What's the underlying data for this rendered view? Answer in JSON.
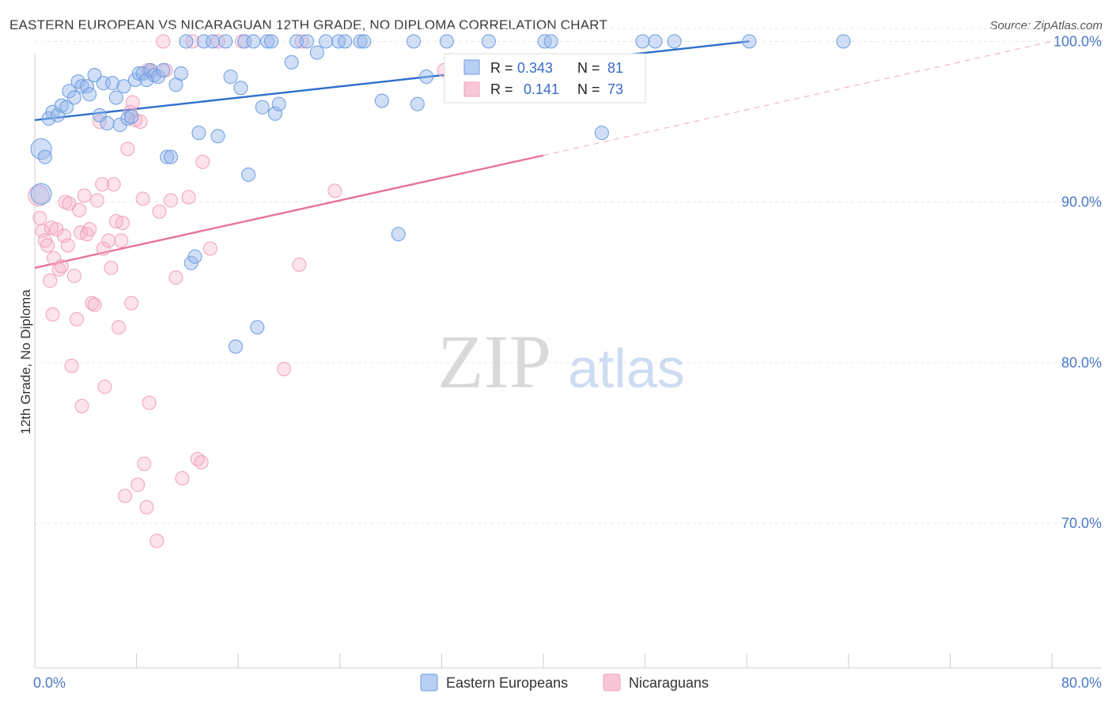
{
  "title": "EASTERN EUROPEAN VS NICARAGUAN 12TH GRADE, NO DIPLOMA CORRELATION CHART",
  "source": "Source: ZipAtlas.com",
  "watermark": {
    "zip": "ZIP",
    "atlas": "atlas"
  },
  "chart_data": {
    "type": "scatter",
    "title": "EASTERN EUROPEAN VS NICARAGUAN 12TH GRADE, NO DIPLOMA CORRELATION CHART",
    "xlabel": "",
    "ylabel": "12th Grade, No Diploma",
    "xlim": [
      0,
      80
    ],
    "ylim": [
      61,
      101
    ],
    "x_tick_labels": [
      "0.0%",
      "80.0%"
    ],
    "y_ticks": [
      70,
      80,
      90,
      100
    ],
    "y_tick_labels": [
      "70.0%",
      "80.0%",
      "90.0%",
      "100.0%"
    ],
    "legend": [
      "Eastern Europeans",
      "Nicaraguans"
    ],
    "series": [
      {
        "name": "Eastern Europeans",
        "color": "#6c9be0",
        "stats": {
          "r_label": "R =",
          "r_value": "0.343",
          "n_label": "N =",
          "n_value": "81"
        },
        "trend": {
          "x": [
            0,
            56.2
          ],
          "y": [
            95.1,
            100.0
          ]
        },
        "points": [
          [
            0.5,
            90.5
          ],
          [
            0.5,
            93.3
          ],
          [
            0.8,
            92.8
          ],
          [
            1.1,
            95.2
          ],
          [
            1.4,
            95.6
          ],
          [
            1.8,
            95.4
          ],
          [
            2.1,
            96.0
          ],
          [
            2.5,
            95.9
          ],
          [
            2.7,
            96.9
          ],
          [
            3.1,
            96.5
          ],
          [
            3.4,
            97.5
          ],
          [
            3.7,
            97.2
          ],
          [
            4.1,
            97.2
          ],
          [
            4.3,
            96.7
          ],
          [
            4.7,
            97.9
          ],
          [
            5.1,
            95.4
          ],
          [
            5.4,
            97.4
          ],
          [
            5.7,
            94.9
          ],
          [
            6.1,
            97.4
          ],
          [
            6.4,
            96.5
          ],
          [
            6.7,
            94.8
          ],
          [
            7.0,
            97.2
          ],
          [
            7.3,
            95.2
          ],
          [
            7.6,
            95.3
          ],
          [
            7.9,
            97.6
          ],
          [
            8.2,
            98.0
          ],
          [
            8.5,
            98.0
          ],
          [
            8.8,
            97.6
          ],
          [
            9.1,
            98.2
          ],
          [
            9.4,
            97.9
          ],
          [
            9.7,
            97.8
          ],
          [
            10.1,
            98.2
          ],
          [
            10.4,
            92.8
          ],
          [
            10.7,
            92.8
          ],
          [
            11.1,
            97.3
          ],
          [
            11.5,
            98.0
          ],
          [
            11.9,
            100.0
          ],
          [
            12.3,
            86.2
          ],
          [
            12.6,
            86.6
          ],
          [
            12.9,
            94.3
          ],
          [
            13.3,
            100.0
          ],
          [
            14.0,
            100.0
          ],
          [
            14.4,
            94.1
          ],
          [
            15.0,
            100.0
          ],
          [
            15.4,
            97.8
          ],
          [
            15.8,
            81.0
          ],
          [
            16.2,
            97.1
          ],
          [
            16.5,
            100.0
          ],
          [
            16.8,
            91.7
          ],
          [
            17.2,
            100.0
          ],
          [
            17.5,
            82.2
          ],
          [
            17.9,
            95.9
          ],
          [
            18.3,
            100.0
          ],
          [
            18.6,
            100.0
          ],
          [
            18.9,
            95.5
          ],
          [
            19.2,
            96.1
          ],
          [
            20.2,
            98.7
          ],
          [
            20.6,
            100.0
          ],
          [
            21.4,
            100.0
          ],
          [
            22.2,
            99.3
          ],
          [
            22.9,
            100.0
          ],
          [
            23.9,
            100.0
          ],
          [
            24.4,
            100.0
          ],
          [
            25.6,
            100.0
          ],
          [
            25.9,
            100.0
          ],
          [
            27.3,
            96.3
          ],
          [
            28.6,
            88.0
          ],
          [
            29.8,
            100.0
          ],
          [
            30.1,
            96.1
          ],
          [
            30.8,
            97.8
          ],
          [
            32.4,
            100.0
          ],
          [
            35.7,
            100.0
          ],
          [
            39.4,
            98.5
          ],
          [
            40.1,
            100.0
          ],
          [
            40.6,
            100.0
          ],
          [
            44.6,
            94.3
          ],
          [
            47.8,
            100.0
          ],
          [
            48.8,
            100.0
          ],
          [
            50.3,
            100.0
          ],
          [
            56.2,
            100.0
          ],
          [
            63.6,
            100.0
          ]
        ]
      },
      {
        "name": "Nicaraguans",
        "color": "#f0a3bd",
        "stats": {
          "r_label": "R =",
          "r_value": "0.141",
          "n_label": "N =",
          "n_value": "73"
        },
        "trend": {
          "x": [
            0,
            40.0
          ],
          "y": [
            85.9,
            92.9
          ]
        },
        "trend_extension": {
          "x": [
            40.0,
            80.0
          ],
          "y": [
            92.9,
            100.0
          ]
        },
        "points": [
          [
            0.3,
            90.4
          ],
          [
            0.4,
            89.0
          ],
          [
            0.6,
            88.2
          ],
          [
            0.8,
            87.6
          ],
          [
            1.0,
            87.3
          ],
          [
            1.2,
            85.1
          ],
          [
            1.3,
            88.4
          ],
          [
            1.4,
            83.0
          ],
          [
            1.5,
            86.5
          ],
          [
            1.7,
            88.3
          ],
          [
            1.9,
            85.8
          ],
          [
            2.1,
            86.0
          ],
          [
            2.3,
            87.9
          ],
          [
            2.4,
            90.0
          ],
          [
            2.6,
            87.3
          ],
          [
            2.7,
            89.9
          ],
          [
            2.9,
            79.8
          ],
          [
            3.1,
            85.4
          ],
          [
            3.3,
            82.7
          ],
          [
            3.5,
            89.5
          ],
          [
            3.6,
            88.1
          ],
          [
            3.7,
            77.3
          ],
          [
            3.9,
            90.4
          ],
          [
            4.1,
            88.0
          ],
          [
            4.3,
            88.3
          ],
          [
            4.5,
            83.7
          ],
          [
            4.7,
            83.6
          ],
          [
            4.9,
            90.1
          ],
          [
            5.1,
            95.0
          ],
          [
            5.3,
            91.1
          ],
          [
            5.4,
            87.1
          ],
          [
            5.5,
            78.5
          ],
          [
            5.8,
            87.6
          ],
          [
            6.0,
            85.9
          ],
          [
            6.2,
            91.1
          ],
          [
            6.4,
            88.8
          ],
          [
            6.6,
            82.2
          ],
          [
            6.8,
            87.6
          ],
          [
            6.9,
            88.7
          ],
          [
            7.1,
            71.7
          ],
          [
            7.3,
            93.3
          ],
          [
            7.5,
            95.6
          ],
          [
            7.6,
            83.7
          ],
          [
            7.7,
            96.2
          ],
          [
            7.9,
            95.1
          ],
          [
            8.1,
            72.4
          ],
          [
            8.3,
            95.0
          ],
          [
            8.5,
            90.2
          ],
          [
            8.6,
            73.7
          ],
          [
            8.8,
            71.0
          ],
          [
            8.9,
            98.2
          ],
          [
            9.0,
            77.5
          ],
          [
            9.2,
            98.1
          ],
          [
            9.6,
            68.9
          ],
          [
            9.8,
            89.4
          ],
          [
            10.1,
            100.0
          ],
          [
            10.3,
            98.2
          ],
          [
            10.7,
            90.1
          ],
          [
            11.1,
            85.3
          ],
          [
            11.6,
            72.8
          ],
          [
            12.1,
            90.3
          ],
          [
            12.4,
            100.0
          ],
          [
            12.8,
            74.0
          ],
          [
            13.1,
            73.8
          ],
          [
            13.2,
            92.5
          ],
          [
            13.8,
            87.1
          ],
          [
            14.4,
            100.0
          ],
          [
            16.3,
            100.0
          ],
          [
            19.6,
            79.6
          ],
          [
            20.8,
            86.1
          ],
          [
            21.0,
            100.0
          ],
          [
            23.6,
            90.7
          ],
          [
            32.2,
            98.2
          ]
        ]
      }
    ]
  }
}
